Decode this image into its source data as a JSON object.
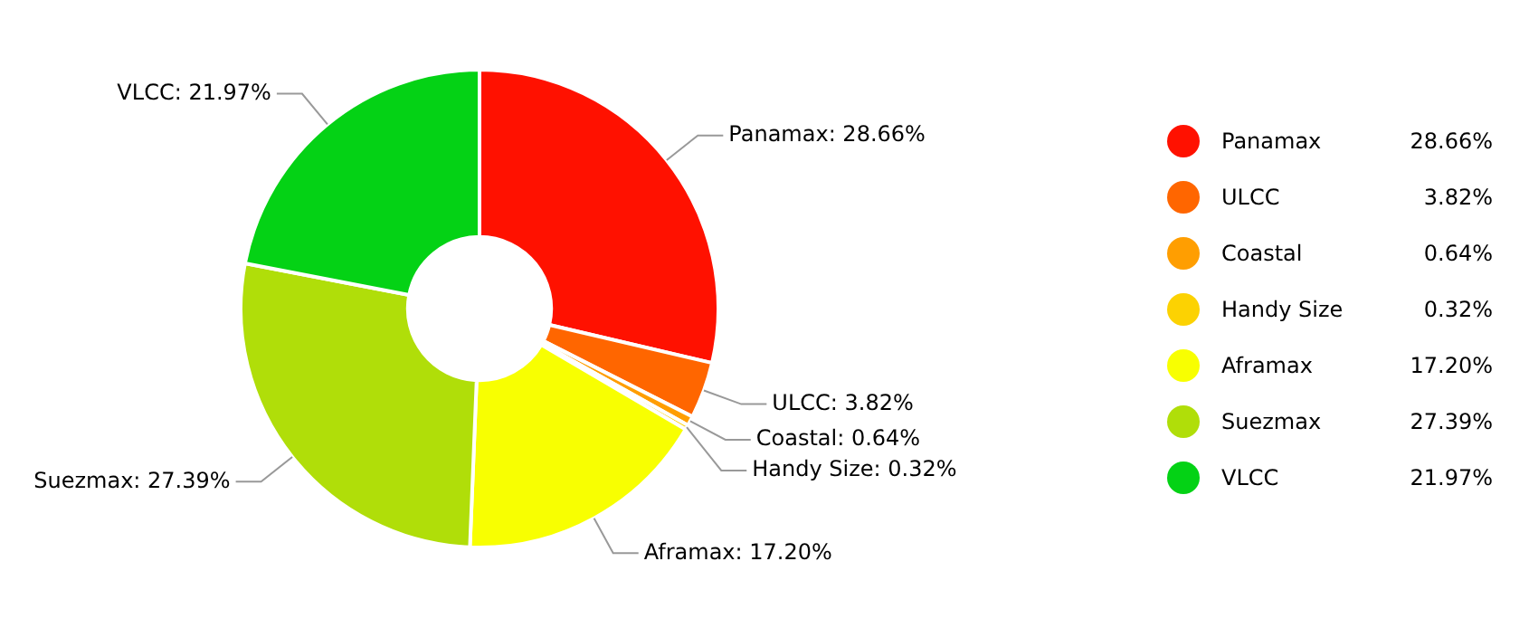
{
  "chart_data": {
    "type": "donut",
    "categories": [
      "Panamax",
      "ULCC",
      "Coastal",
      "Handy Size",
      "Aframax",
      "Suezmax",
      "VLCC"
    ],
    "values": [
      28.66,
      3.82,
      0.64,
      0.32,
      17.2,
      27.39,
      21.97
    ],
    "colors": [
      "#ff1100",
      "#ff6600",
      "#ff9e01",
      "#fcd202",
      "#f8ff01",
      "#b0de09",
      "#04d215"
    ],
    "value_labels": [
      "Panamax: 28.66%",
      "ULCC: 3.82%",
      "Coastal: 0.64%",
      "Handy Size: 0.32%",
      "Aframax: 17.20%",
      "Suezmax: 27.39%",
      "VLCC: 21.97%"
    ],
    "annotations": [
      "28.66%",
      "3.82%",
      "0.64%",
      "0.32%",
      "17.20%",
      "27.39%",
      "21.97%"
    ],
    "legend": "right"
  }
}
